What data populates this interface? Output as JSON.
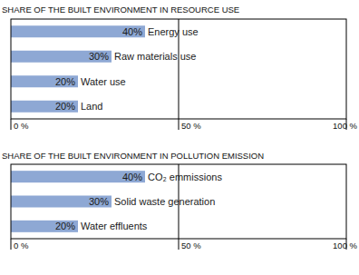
{
  "chart_data": [
    {
      "type": "bar",
      "orientation": "horizontal",
      "title": "SHARE OF THE BUILT ENVIRONMENT IN RESOURCE USE",
      "categories": [
        "Energy use",
        "Raw materials use",
        "Water use",
        "Land"
      ],
      "values": [
        40,
        30,
        20,
        20
      ],
      "value_labels": [
        "40%",
        "30%",
        "20%",
        "20%"
      ],
      "data_labels": true,
      "color": "#8ea8d4",
      "xlim": [
        0,
        100
      ],
      "xticks": [
        {
          "value": 0,
          "label": "0 %"
        },
        {
          "value": 50,
          "label": "50 %"
        },
        {
          "value": 100,
          "label": "100 %"
        }
      ],
      "grid": true
    },
    {
      "type": "bar",
      "orientation": "horizontal",
      "title": "SHARE OF THE BUILT ENVIRONMENT IN POLLUTION EMISSION",
      "categories": [
        "CO₂ emmissions",
        "Solid waste generation",
        "Water effluents"
      ],
      "values": [
        40,
        30,
        20
      ],
      "value_labels": [
        "40%",
        "30%",
        "20%"
      ],
      "data_labels": true,
      "color": "#8ea8d4",
      "xlim": [
        0,
        100
      ],
      "xticks": [
        {
          "value": 0,
          "label": "0 %"
        },
        {
          "value": 50,
          "label": "50 %"
        },
        {
          "value": 100,
          "label": "100 %"
        }
      ],
      "grid": true
    }
  ]
}
